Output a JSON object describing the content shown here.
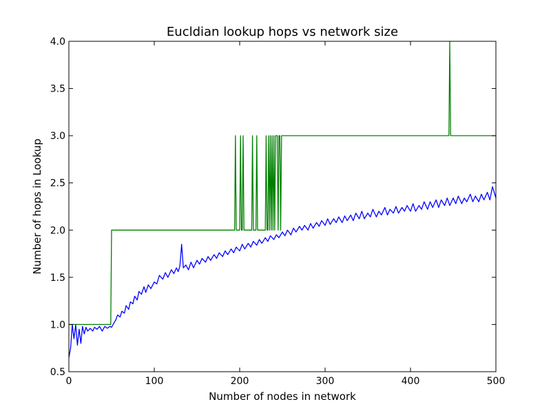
{
  "chart_data": {
    "type": "line",
    "title": "Eucldian lookup hops vs network size",
    "xlabel": "Number of nodes in network",
    "ylabel": "Number of hops in Lookup",
    "xlim": [
      0,
      500
    ],
    "ylim": [
      0.5,
      4.0
    ],
    "x_ticks": [
      0,
      100,
      200,
      300,
      400,
      500
    ],
    "y_ticks": [
      0.5,
      1.0,
      1.5,
      2.0,
      2.5,
      3.0,
      3.5,
      4.0
    ],
    "x_tick_labels": [
      "0",
      "100",
      "200",
      "300",
      "400",
      "500"
    ],
    "y_tick_labels": [
      "0.5",
      "1.0",
      "1.5",
      "2.0",
      "2.5",
      "3.0",
      "3.5",
      "4.0"
    ],
    "grid": false,
    "legend": "none",
    "series": [
      {
        "color": "#0000ff",
        "points": [
          [
            0,
            0.65
          ],
          [
            2,
            0.75
          ],
          [
            4,
            1.0
          ],
          [
            6,
            0.85
          ],
          [
            8,
            1.0
          ],
          [
            10,
            0.78
          ],
          [
            12,
            0.95
          ],
          [
            14,
            0.8
          ],
          [
            16,
            0.98
          ],
          [
            18,
            0.9
          ],
          [
            20,
            0.97
          ],
          [
            22,
            0.93
          ],
          [
            25,
            0.96
          ],
          [
            28,
            0.93
          ],
          [
            30,
            0.97
          ],
          [
            33,
            0.95
          ],
          [
            36,
            0.98
          ],
          [
            39,
            0.93
          ],
          [
            42,
            0.98
          ],
          [
            45,
            0.96
          ],
          [
            48,
            0.98
          ],
          [
            50,
            0.97
          ],
          [
            53,
            1.02
          ],
          [
            55,
            1.05
          ],
          [
            57,
            1.1
          ],
          [
            60,
            1.08
          ],
          [
            62,
            1.14
          ],
          [
            65,
            1.12
          ],
          [
            67,
            1.2
          ],
          [
            70,
            1.16
          ],
          [
            72,
            1.24
          ],
          [
            75,
            1.22
          ],
          [
            77,
            1.3
          ],
          [
            80,
            1.26
          ],
          [
            82,
            1.35
          ],
          [
            85,
            1.32
          ],
          [
            88,
            1.4
          ],
          [
            90,
            1.34
          ],
          [
            93,
            1.42
          ],
          [
            96,
            1.38
          ],
          [
            100,
            1.45
          ],
          [
            103,
            1.43
          ],
          [
            106,
            1.52
          ],
          [
            110,
            1.48
          ],
          [
            113,
            1.55
          ],
          [
            116,
            1.5
          ],
          [
            120,
            1.58
          ],
          [
            123,
            1.54
          ],
          [
            126,
            1.6
          ],
          [
            128,
            1.56
          ],
          [
            130,
            1.62
          ],
          [
            132,
            1.85
          ],
          [
            134,
            1.6
          ],
          [
            137,
            1.63
          ],
          [
            140,
            1.58
          ],
          [
            143,
            1.66
          ],
          [
            146,
            1.6
          ],
          [
            150,
            1.68
          ],
          [
            153,
            1.64
          ],
          [
            156,
            1.7
          ],
          [
            160,
            1.66
          ],
          [
            163,
            1.72
          ],
          [
            166,
            1.68
          ],
          [
            170,
            1.74
          ],
          [
            173,
            1.7
          ],
          [
            176,
            1.76
          ],
          [
            180,
            1.72
          ],
          [
            183,
            1.78
          ],
          [
            186,
            1.74
          ],
          [
            190,
            1.8
          ],
          [
            193,
            1.76
          ],
          [
            196,
            1.82
          ],
          [
            200,
            1.78
          ],
          [
            203,
            1.85
          ],
          [
            206,
            1.8
          ],
          [
            210,
            1.86
          ],
          [
            213,
            1.82
          ],
          [
            216,
            1.88
          ],
          [
            220,
            1.84
          ],
          [
            223,
            1.9
          ],
          [
            226,
            1.86
          ],
          [
            230,
            1.92
          ],
          [
            233,
            1.88
          ],
          [
            236,
            1.94
          ],
          [
            240,
            1.9
          ],
          [
            243,
            1.95
          ],
          [
            246,
            1.92
          ],
          [
            250,
            1.98
          ],
          [
            253,
            1.94
          ],
          [
            256,
            2.0
          ],
          [
            260,
            1.95
          ],
          [
            263,
            2.02
          ],
          [
            266,
            1.98
          ],
          [
            270,
            2.04
          ],
          [
            273,
            2.0
          ],
          [
            276,
            2.05
          ],
          [
            280,
            2.0
          ],
          [
            283,
            2.07
          ],
          [
            286,
            2.02
          ],
          [
            290,
            2.08
          ],
          [
            293,
            2.04
          ],
          [
            296,
            2.1
          ],
          [
            300,
            2.05
          ],
          [
            303,
            2.12
          ],
          [
            306,
            2.06
          ],
          [
            310,
            2.12
          ],
          [
            313,
            2.08
          ],
          [
            316,
            2.14
          ],
          [
            320,
            2.08
          ],
          [
            323,
            2.15
          ],
          [
            326,
            2.1
          ],
          [
            330,
            2.16
          ],
          [
            333,
            2.1
          ],
          [
            336,
            2.18
          ],
          [
            340,
            2.12
          ],
          [
            343,
            2.2
          ],
          [
            346,
            2.12
          ],
          [
            350,
            2.18
          ],
          [
            353,
            2.14
          ],
          [
            356,
            2.22
          ],
          [
            360,
            2.14
          ],
          [
            363,
            2.2
          ],
          [
            366,
            2.16
          ],
          [
            370,
            2.24
          ],
          [
            373,
            2.16
          ],
          [
            376,
            2.22
          ],
          [
            380,
            2.18
          ],
          [
            383,
            2.25
          ],
          [
            386,
            2.18
          ],
          [
            390,
            2.24
          ],
          [
            393,
            2.2
          ],
          [
            396,
            2.26
          ],
          [
            400,
            2.2
          ],
          [
            403,
            2.28
          ],
          [
            406,
            2.2
          ],
          [
            410,
            2.26
          ],
          [
            413,
            2.22
          ],
          [
            416,
            2.3
          ],
          [
            420,
            2.22
          ],
          [
            423,
            2.3
          ],
          [
            426,
            2.24
          ],
          [
            430,
            2.32
          ],
          [
            433,
            2.24
          ],
          [
            436,
            2.32
          ],
          [
            440,
            2.26
          ],
          [
            443,
            2.34
          ],
          [
            446,
            2.26
          ],
          [
            450,
            2.34
          ],
          [
            453,
            2.28
          ],
          [
            456,
            2.36
          ],
          [
            460,
            2.28
          ],
          [
            463,
            2.34
          ],
          [
            466,
            2.3
          ],
          [
            470,
            2.38
          ],
          [
            473,
            2.3
          ],
          [
            476,
            2.36
          ],
          [
            480,
            2.3
          ],
          [
            483,
            2.38
          ],
          [
            486,
            2.32
          ],
          [
            490,
            2.4
          ],
          [
            493,
            2.32
          ],
          [
            496,
            2.46
          ],
          [
            500,
            2.34
          ]
        ]
      },
      {
        "color": "#008000",
        "points": [
          [
            0,
            1.0
          ],
          [
            49,
            1.0
          ],
          [
            50,
            2.0
          ],
          [
            194,
            2.0
          ],
          [
            195,
            3.0
          ],
          [
            196,
            2.0
          ],
          [
            200,
            2.0
          ],
          [
            201,
            3.0
          ],
          [
            202,
            2.0
          ],
          [
            203,
            2.0
          ],
          [
            204,
            3.0
          ],
          [
            205,
            2.0
          ],
          [
            214,
            2.0
          ],
          [
            215,
            3.0
          ],
          [
            216,
            2.0
          ],
          [
            219,
            2.0
          ],
          [
            220,
            3.0
          ],
          [
            221,
            2.0
          ],
          [
            230,
            2.0
          ],
          [
            231,
            3.0
          ],
          [
            232,
            2.0
          ],
          [
            233,
            2.0
          ],
          [
            234,
            3.0
          ],
          [
            235,
            2.0
          ],
          [
            236,
            3.0
          ],
          [
            237,
            2.0
          ],
          [
            238,
            3.0
          ],
          [
            239,
            2.0
          ],
          [
            240,
            3.0
          ],
          [
            241,
            2.0
          ],
          [
            242,
            3.0
          ],
          [
            244,
            3.0
          ],
          [
            245,
            2.0
          ],
          [
            246,
            3.0
          ],
          [
            247,
            3.0
          ],
          [
            248,
            2.0
          ],
          [
            249,
            3.0
          ],
          [
            445,
            3.0
          ],
          [
            446,
            4.0
          ],
          [
            447,
            3.0
          ],
          [
            500,
            3.0
          ]
        ]
      }
    ]
  }
}
